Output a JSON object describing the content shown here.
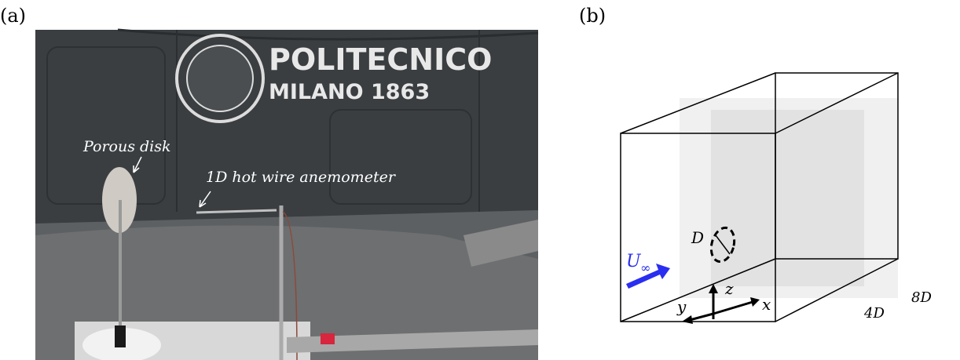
{
  "panel_a": {
    "label": "(a)",
    "logo_line1": "POLITECNICO",
    "logo_line2": "MILANO 1863",
    "disk_label": "Porous disk",
    "probe_label": "1D hot wire anemometer"
  },
  "panel_b": {
    "label": "(b)",
    "diameter": "D",
    "velocity": {
      "symbol": "U",
      "subscript": "∞"
    },
    "axes": {
      "x": "x",
      "y": "y",
      "z": "z"
    },
    "width": "4D",
    "length": "8D"
  }
}
